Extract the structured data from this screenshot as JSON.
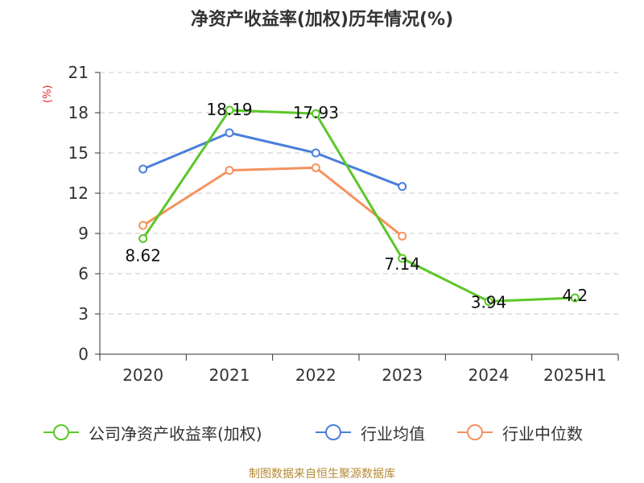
{
  "chart_data": {
    "type": "line",
    "title": "净资产收益率(加权)历年情况(%)",
    "ylabel": "(%)",
    "xlabel": "",
    "categories": [
      "2020",
      "2021",
      "2022",
      "2023",
      "2024",
      "2025H1"
    ],
    "yticks": [
      0,
      3,
      6,
      9,
      12,
      15,
      18,
      21
    ],
    "ylim": [
      0,
      21
    ],
    "grid": "horizontal-dashed",
    "legend_position": "bottom",
    "series": [
      {
        "name": "公司净资产收益率(加权)",
        "color": "#5ac828",
        "values": [
          8.62,
          18.19,
          17.93,
          7.14,
          3.94,
          4.2
        ],
        "labels": [
          "8.62",
          "18.19",
          "17.93",
          "7.14",
          "3.94",
          "4.2"
        ]
      },
      {
        "name": "行业均值",
        "color": "#4a7fdb",
        "values": [
          13.8,
          16.5,
          15.0,
          12.5,
          null,
          null
        ]
      },
      {
        "name": "行业中位数",
        "color": "#f5925e",
        "values": [
          9.6,
          13.7,
          13.9,
          8.8,
          null,
          null
        ]
      }
    ]
  },
  "source": "制图数据来自恒生聚源数据库"
}
